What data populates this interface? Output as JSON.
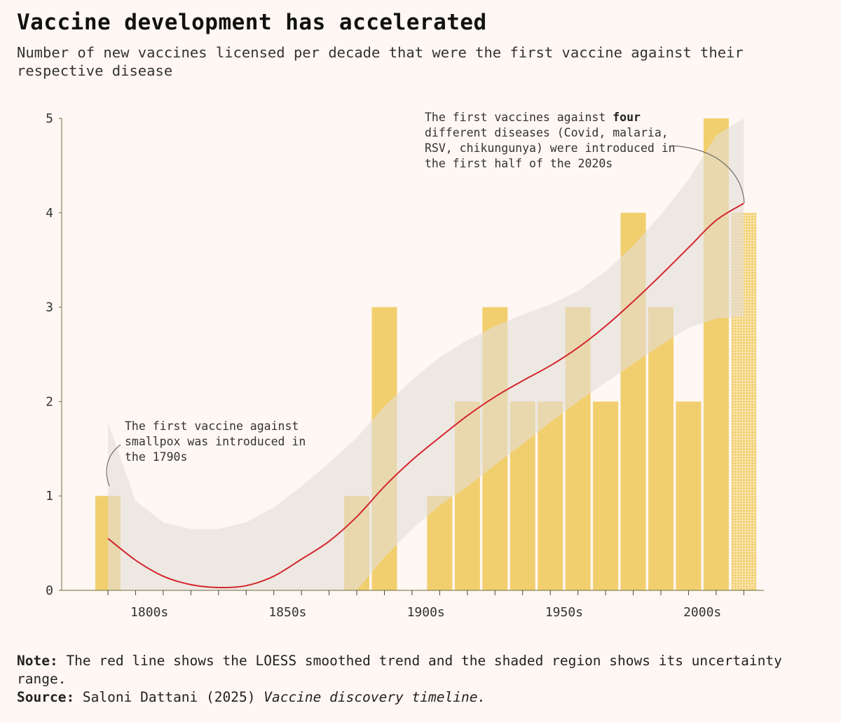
{
  "title": "Vaccine development has accelerated",
  "subtitle": "Number of new vaccines licensed per decade that were the first vaccine against their respective disease",
  "annotations": {
    "smallpox": "The first vaccine against smallpox was introduced in the 1790s",
    "recent_pre": "The first vaccines against ",
    "recent_bold": "four",
    "recent_post": " different diseases (Covid, malaria, RSV, chikungunya) were introduced in the first half of the 2020s"
  },
  "footer": {
    "note_label": "Note:",
    "note_text": " The red line shows the LOESS smoothed trend and the shaded region shows its uncertainty range.",
    "source_label": "Source:",
    "source_text": " Saloni Dattani (2025) ",
    "source_title": "Vaccine discovery timeline."
  },
  "colors": {
    "background": "#fef7f3",
    "bar": "#f2cf6e",
    "trend": "#d3262c",
    "band": "#e3ddd8",
    "axis": "#6b6b3a"
  },
  "chart_data": {
    "type": "bar",
    "categories": [
      "1790s",
      "1800s",
      "1810s",
      "1820s",
      "1830s",
      "1840s",
      "1850s",
      "1860s",
      "1870s",
      "1880s",
      "1890s",
      "1900s",
      "1910s",
      "1920s",
      "1930s",
      "1940s",
      "1950s",
      "1960s",
      "1970s",
      "1980s",
      "1990s",
      "2000s",
      "2010s",
      "2020s"
    ],
    "values": [
      1,
      0,
      0,
      0,
      0,
      0,
      0,
      0,
      0,
      1,
      3,
      0,
      1,
      2,
      3,
      2,
      2,
      3,
      2,
      4,
      3,
      2,
      5,
      4
    ],
    "partial_last_bar": true,
    "ylim": [
      0,
      5
    ],
    "yticks": [
      "0",
      "1",
      "2",
      "3",
      "4",
      "5"
    ],
    "xtick_labels": [
      {
        "label": "1800s",
        "year": 1800
      },
      {
        "label": "1850s",
        "year": 1850
      },
      {
        "label": "1900s",
        "year": 1900
      },
      {
        "label": "1950s",
        "year": 1950
      },
      {
        "label": "2000s",
        "year": 2000
      }
    ],
    "trend": {
      "name": "LOESS smoothed trend",
      "years": [
        1790,
        1800,
        1810,
        1820,
        1830,
        1840,
        1850,
        1860,
        1870,
        1880,
        1890,
        1900,
        1910,
        1920,
        1930,
        1940,
        1950,
        1960,
        1970,
        1980,
        1990,
        2000,
        2010,
        2020
      ],
      "values": [
        0.55,
        0.32,
        0.15,
        0.06,
        0.03,
        0.05,
        0.15,
        0.33,
        0.52,
        0.78,
        1.1,
        1.38,
        1.62,
        1.85,
        2.05,
        2.22,
        2.38,
        2.57,
        2.8,
        3.06,
        3.34,
        3.63,
        3.92,
        4.1
      ],
      "upper": [
        1.78,
        0.95,
        0.72,
        0.65,
        0.65,
        0.72,
        0.88,
        1.1,
        1.35,
        1.62,
        1.95,
        2.23,
        2.47,
        2.65,
        2.8,
        2.92,
        3.03,
        3.17,
        3.38,
        3.65,
        3.98,
        4.35,
        4.82,
        5.0
      ],
      "lower": [
        0.0,
        0.0,
        0.0,
        0.0,
        0.0,
        0.0,
        0.0,
        0.0,
        0.0,
        0.0,
        0.35,
        0.65,
        0.9,
        1.1,
        1.33,
        1.55,
        1.78,
        2.0,
        2.2,
        2.4,
        2.6,
        2.78,
        2.88,
        2.9
      ]
    }
  }
}
